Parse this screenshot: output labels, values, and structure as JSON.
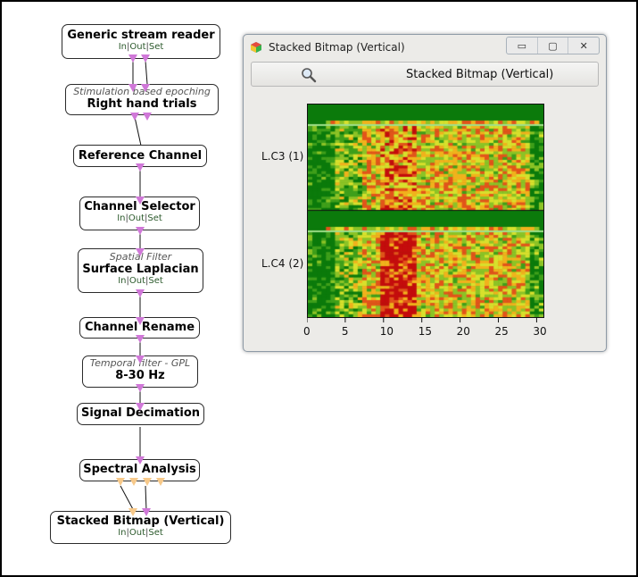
{
  "pipeline": {
    "nodes": [
      {
        "id": "generic-stream-reader",
        "subtitle": "",
        "title": "Generic stream reader",
        "ios": true
      },
      {
        "id": "stimulation-epoching",
        "subtitle": "Stimulation based epoching",
        "title": "Right hand trials",
        "ios": false
      },
      {
        "id": "reference-channel",
        "subtitle": "",
        "title": "Reference Channel",
        "ios": false
      },
      {
        "id": "channel-selector",
        "subtitle": "",
        "title": "Channel Selector",
        "ios": true
      },
      {
        "id": "spatial-filter",
        "subtitle": "Spatial Filter",
        "title": "Surface Laplacian",
        "ios": true
      },
      {
        "id": "channel-rename",
        "subtitle": "",
        "title": "Channel Rename",
        "ios": false
      },
      {
        "id": "temporal-filter",
        "subtitle": "Temporal filter - GPL",
        "title": "8-30 Hz",
        "ios": false
      },
      {
        "id": "signal-decimation",
        "subtitle": "",
        "title": "Signal Decimation",
        "ios": false
      },
      {
        "id": "spectral-analysis",
        "subtitle": "",
        "title": "Spectral Analysis",
        "ios": false
      },
      {
        "id": "stacked-bitmap",
        "subtitle": "",
        "title": "Stacked Bitmap (Vertical)",
        "ios": true
      }
    ],
    "ios_labels": {
      "in": "In",
      "out": "Out",
      "set": "Set",
      "sep": "|"
    }
  },
  "window": {
    "title": "Stacked Bitmap (Vertical)",
    "toolbar_label": "Stacked Bitmap (Vertical)",
    "controls": {
      "minimize": "▭",
      "restore": "▢",
      "close": "✕"
    },
    "icons": {
      "app": "app-icon",
      "search": "search-icon"
    }
  },
  "plot": {
    "channels": [
      "L.C3 (1)",
      "L.C4 (2)"
    ],
    "x_ticks": [
      "0",
      "5",
      "10",
      "15",
      "20",
      "25",
      "30"
    ],
    "x_range": [
      0,
      31
    ],
    "colormap": [
      "#0b7a0b",
      "#3f9f1a",
      "#8cc326",
      "#d8e02c",
      "#f1b21c",
      "#e2541a",
      "#c40c0c"
    ]
  }
}
